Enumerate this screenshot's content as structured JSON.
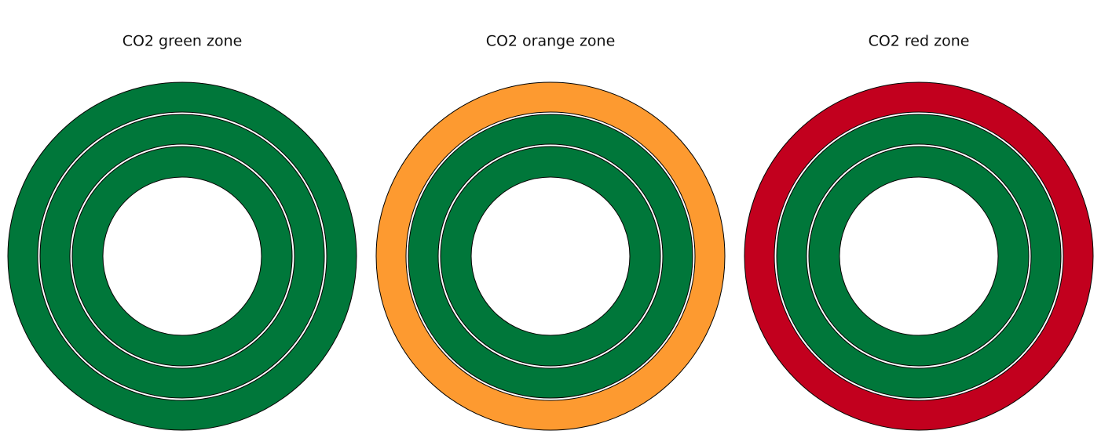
{
  "panels": [
    {
      "title": "CO2 green zone",
      "rings": [
        "#00773a",
        "#00773a",
        "#00773a"
      ]
    },
    {
      "title": "CO2 orange zone",
      "rings": [
        "#fd9a30",
        "#00773a",
        "#00773a"
      ]
    },
    {
      "title": "CO2 red zone",
      "rings": [
        "#c2001e",
        "#00773a",
        "#00773a"
      ]
    }
  ]
}
